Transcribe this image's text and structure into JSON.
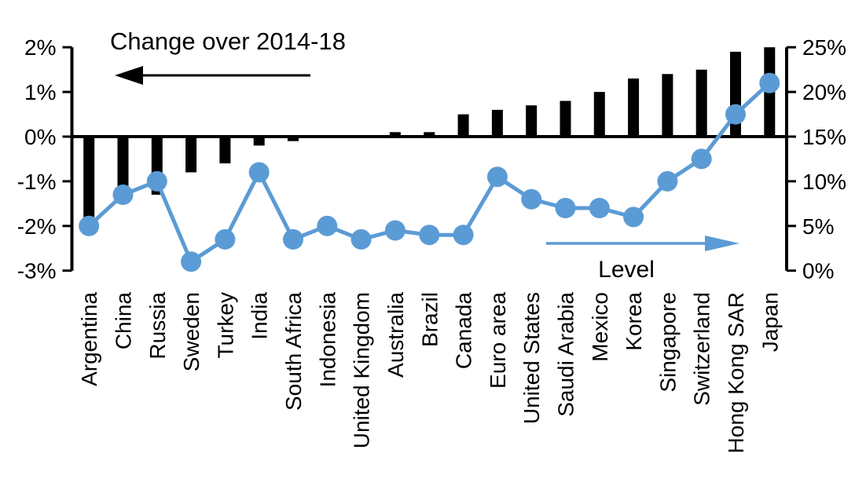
{
  "chart_data": {
    "type": "combo",
    "title": "",
    "categories": [
      "Argentina",
      "China",
      "Russia",
      "Sweden",
      "Turkey",
      "India",
      "South Africa",
      "Indonesia",
      "United Kingdom",
      "Australia",
      "Brazil",
      "Canada",
      "Euro area",
      "United States",
      "Saudi Arabia",
      "Mexico",
      "Korea",
      "Singapore",
      "Switzerland",
      "Hong Kong SAR",
      "Japan"
    ],
    "series": [
      {
        "name": "Change over 2014-18",
        "chart_type": "bar",
        "axis": "left",
        "color": "#000000",
        "values": [
          -1.8,
          -1.5,
          -1.3,
          -0.8,
          -0.6,
          -0.2,
          -0.1,
          0,
          0,
          0.1,
          0.1,
          0.5,
          0.6,
          0.7,
          0.8,
          1.0,
          1.3,
          1.4,
          1.5,
          1.9,
          2.0
        ]
      },
      {
        "name": "Level",
        "chart_type": "line",
        "axis": "right",
        "color": "#5B9BD5",
        "values": [
          5,
          8.5,
          10,
          1,
          3.5,
          11,
          3.5,
          5,
          3.5,
          4.5,
          4,
          4,
          10.5,
          8,
          7,
          7,
          6,
          10,
          12.5,
          17.5,
          21
        ]
      }
    ],
    "left_axis": {
      "min": -3,
      "max": 2,
      "ticks": [
        2,
        1,
        0,
        -1,
        -2,
        -3
      ],
      "tick_labels": [
        "2%",
        "1%",
        "0%",
        "-1%",
        "-2%",
        "-3%"
      ]
    },
    "right_axis": {
      "min": 0,
      "max": 25,
      "ticks": [
        25,
        20,
        15,
        10,
        5,
        0
      ],
      "tick_labels": [
        "25%",
        "20%",
        "15%",
        "10%",
        "5%",
        "0%"
      ]
    },
    "annotations": [
      {
        "id": "bar-series-label",
        "text": "Change over 2014-18",
        "arrow_direction": "left",
        "arrow_color": "#000000",
        "text_color": "#000000"
      },
      {
        "id": "line-series-label",
        "text": "Level",
        "arrow_direction": "right",
        "arrow_color": "#5B9BD5",
        "text_color": "#000000"
      }
    ],
    "grid": false,
    "legend_position": "none",
    "background": "#FFFFFF"
  }
}
